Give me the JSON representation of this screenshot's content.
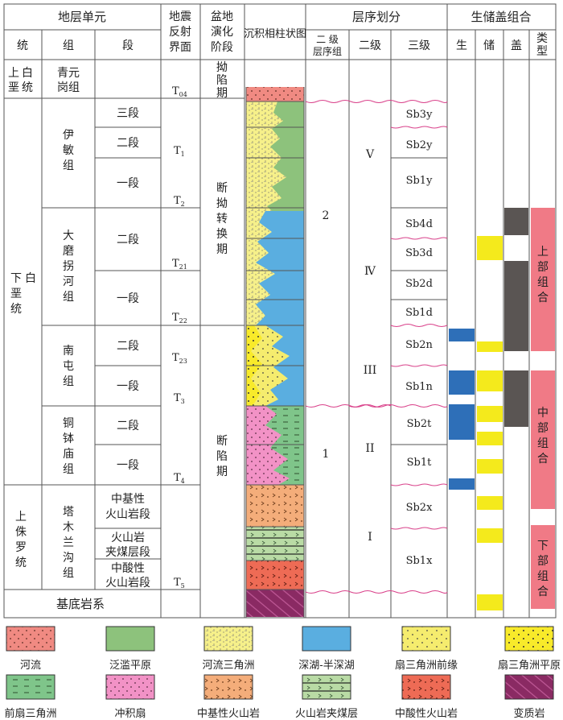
{
  "headers": {
    "stratigraphic_unit": "地层单元",
    "system": "统",
    "formation": "组",
    "member": "段",
    "seismic_line1": "地震",
    "seismic_line2": "反射",
    "seismic_line3": "界面",
    "basin_line1": "盆地",
    "basin_line2": "演化",
    "basin_line3": "阶段",
    "facies_column": "沉积相柱状图",
    "sequence": "层序划分",
    "seq_group_line1": "二  级",
    "seq_group_line2": "层序组",
    "second_order": "二级",
    "third_order": "三级",
    "assemblage": "生储盖组合",
    "source": "生",
    "reservoir": "储",
    "cap": "盖",
    "type_line1": "类",
    "type_line2": "型"
  },
  "systems": {
    "upper_cretaceous": [
      "上",
      "白",
      "垩",
      "统"
    ],
    "lower_cretaceous": [
      "下",
      "白",
      "垩",
      "统"
    ],
    "upper_jurassic": [
      "上",
      "侏",
      "罗",
      "统"
    ]
  },
  "formations": {
    "qingyuangang": [
      "青元",
      "岗组"
    ],
    "yimin": [
      "伊",
      "敏",
      "组"
    ],
    "damoguaihe": [
      "大",
      "磨",
      "拐",
      "河",
      "组"
    ],
    "nantun": [
      "南",
      "屯",
      "组"
    ],
    "tongbomiao": [
      "铜",
      "钵",
      "庙",
      "组"
    ],
    "tamulangou": [
      "塔",
      "木",
      "兰",
      "沟",
      "组"
    ]
  },
  "members": {
    "third": "三段",
    "second": "二段",
    "first": "一段",
    "intermediate_basic_line1": "中基性",
    "intermediate_basic_line2": "火山岩段",
    "volcanic_coal_line1": "火山岩",
    "volcanic_coal_line2": "夹煤层段",
    "intermediate_acid_line1": "中酸性",
    "intermediate_acid_line2": "火山岩段"
  },
  "basement": "基底岩系",
  "seismic_interfaces": [
    {
      "base": "T",
      "sub": "04"
    },
    {
      "base": "T",
      "sub": "1"
    },
    {
      "base": "T",
      "sub": "2"
    },
    {
      "base": "T",
      "sub": "21"
    },
    {
      "base": "T",
      "sub": "22"
    },
    {
      "base": "T",
      "sub": "23"
    },
    {
      "base": "T",
      "sub": "3"
    },
    {
      "base": "T",
      "sub": "4"
    },
    {
      "base": "T",
      "sub": "5"
    }
  ],
  "basin_stages": {
    "depression": [
      "拗",
      "陷",
      "期"
    ],
    "transition": [
      "断",
      "拗",
      "转",
      "换",
      "期"
    ],
    "rift": [
      "断",
      "陷",
      "期"
    ]
  },
  "sequence_groups": [
    "2",
    "1"
  ],
  "second_order_sequences": [
    "V",
    "Ⅳ",
    "III",
    "II",
    "I"
  ],
  "third_order_sequences": [
    "Sb3y",
    "Sb2y",
    "Sb1y",
    "Sb4d",
    "Sb3d",
    "Sb2d",
    "Sb1d",
    "Sb2n",
    "Sb1n",
    "Sb2t",
    "Sb1t",
    "Sb2x",
    "Sb1x"
  ],
  "assemblage_types": {
    "upper": [
      "上",
      "部",
      "组",
      "合"
    ],
    "middle": [
      "中",
      "部",
      "组",
      "合"
    ],
    "lower": [
      "下",
      "部",
      "组",
      "合"
    ]
  },
  "legend": [
    {
      "label": "河流",
      "color": "#f08a82"
    },
    {
      "label": "泛滥平原",
      "color": "#8dc27c"
    },
    {
      "label": "河流三角洲",
      "color": "#f6f08a"
    },
    {
      "label": "深湖-半深湖",
      "color": "#5aaee0"
    },
    {
      "label": "扇三角洲前缘",
      "color": "#f5ec6e"
    },
    {
      "label": "扇三角洲平原",
      "color": "#f8ea2a"
    },
    {
      "label": "前扇三角洲",
      "color": "#7fc58a"
    },
    {
      "label": "冲积扇",
      "color": "#f292c6"
    },
    {
      "label": "中基性火山岩",
      "color": "#f4ad7a"
    },
    {
      "label": "火山岩夹煤层",
      "color": "#b9dba5"
    },
    {
      "label": "中酸性火山岩",
      "color": "#ee6b55"
    },
    {
      "label": "变质岩",
      "color": "#8a2a63"
    }
  ],
  "colors": {
    "grid": "#555555",
    "boundary_wave": "#d9418a",
    "source_blue": "#2e6fb8",
    "reservoir_yellow": "#f4ea1c",
    "cap_gray": "#5a5553",
    "assemblage_pink": "#f07a86"
  }
}
